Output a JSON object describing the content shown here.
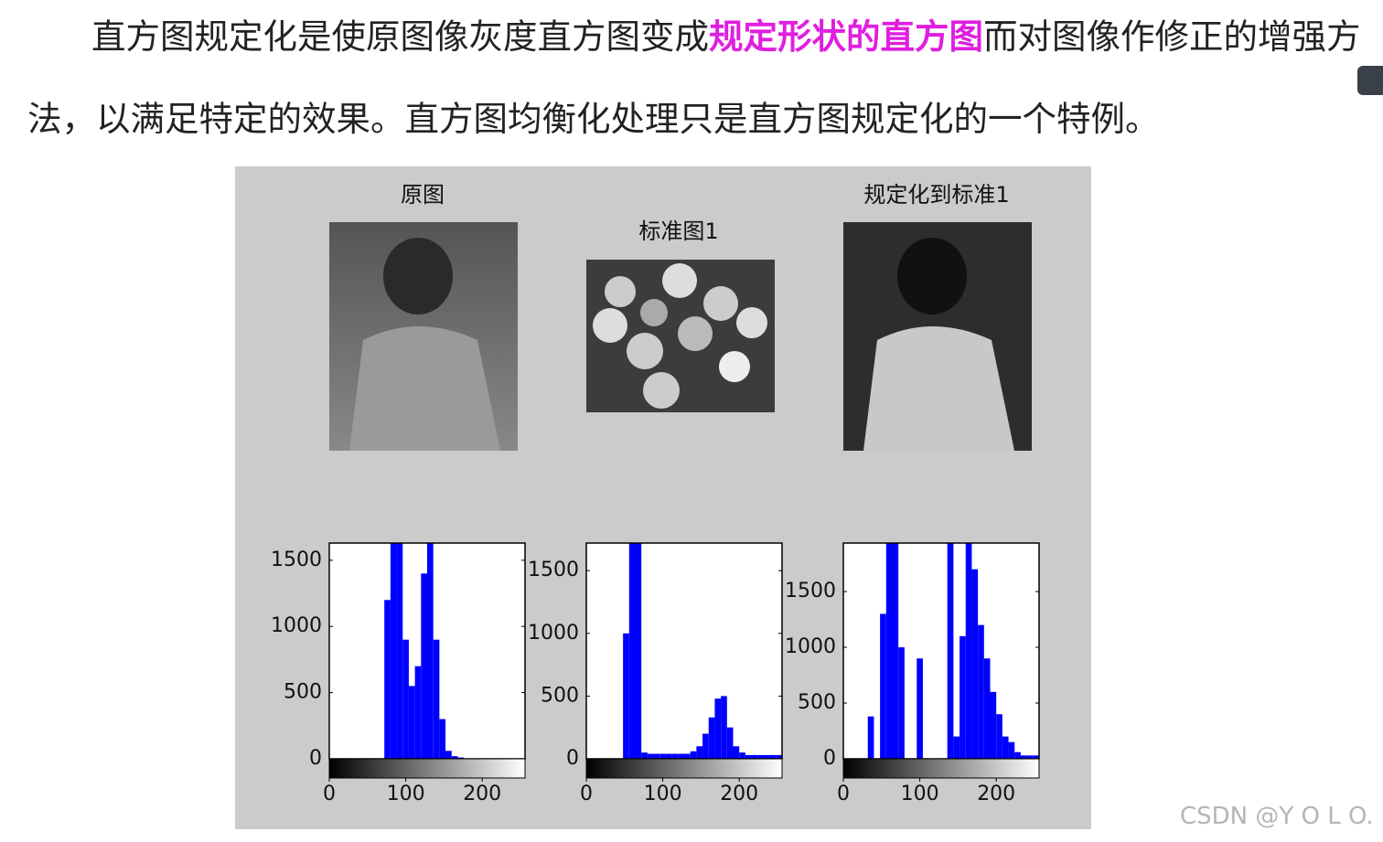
{
  "paragraph": {
    "before": "直方图规定化是使原图像灰度直方图变成",
    "highlight": "规定形状的直方图",
    "after": "而对图像作修正的增强方法，以满足特定的效果。直方图均衡化处理只是直方图规定化的一个特例。"
  },
  "figure": {
    "titles": [
      "原图",
      "标准图1",
      "规定化到标准1"
    ],
    "histograms": [
      {
        "xlim": [
          0,
          256
        ],
        "ylim": [
          0,
          1630
        ],
        "xticks": [
          0,
          100,
          200
        ],
        "yticks": [
          0,
          500,
          1000,
          1500
        ],
        "color": "#0000ff",
        "bins": [
          0,
          8,
          16,
          24,
          32,
          40,
          48,
          56,
          64,
          72,
          80,
          88,
          96,
          104,
          112,
          120,
          128,
          136,
          144,
          152,
          160,
          168,
          176,
          184,
          192,
          200,
          208,
          216,
          224,
          232,
          240,
          248,
          256
        ],
        "counts": [
          0,
          0,
          0,
          0,
          0,
          0,
          0,
          0,
          0,
          1200,
          1700,
          1700,
          900,
          550,
          700,
          1400,
          1700,
          900,
          300,
          60,
          20,
          10,
          0,
          0,
          0,
          0,
          0,
          0,
          0,
          0,
          0,
          0
        ]
      },
      {
        "xlim": [
          0,
          256
        ],
        "ylim": [
          0,
          1720
        ],
        "xticks": [
          0,
          100,
          200
        ],
        "yticks": [
          0,
          500,
          1000,
          1500
        ],
        "color": "#0000ff",
        "bins": [
          0,
          8,
          16,
          24,
          32,
          40,
          48,
          56,
          64,
          72,
          80,
          88,
          96,
          104,
          112,
          120,
          128,
          136,
          144,
          152,
          160,
          168,
          176,
          184,
          192,
          200,
          208,
          216,
          224,
          232,
          240,
          248,
          256
        ],
        "counts": [
          0,
          0,
          0,
          0,
          0,
          0,
          1000,
          1800,
          1800,
          50,
          40,
          40,
          40,
          40,
          40,
          40,
          40,
          60,
          100,
          200,
          330,
          480,
          500,
          250,
          100,
          50,
          30,
          30,
          30,
          30,
          30,
          30
        ]
      },
      {
        "xlim": [
          0,
          256
        ],
        "ylim": [
          0,
          1935
        ],
        "xticks": [
          0,
          100,
          200
        ],
        "yticks": [
          0,
          500,
          1000,
          1500
        ],
        "color": "#0000ff",
        "bins": [
          0,
          8,
          16,
          24,
          32,
          40,
          48,
          56,
          64,
          72,
          80,
          88,
          96,
          104,
          112,
          120,
          128,
          136,
          144,
          152,
          160,
          168,
          176,
          184,
          192,
          200,
          208,
          216,
          224,
          232,
          240,
          248,
          256
        ],
        "counts": [
          0,
          0,
          0,
          0,
          380,
          0,
          1300,
          2000,
          2000,
          1000,
          0,
          0,
          900,
          0,
          0,
          0,
          0,
          2000,
          200,
          1100,
          2000,
          1700,
          1200,
          900,
          600,
          400,
          200,
          150,
          60,
          30,
          30,
          30
        ]
      }
    ]
  },
  "watermark": "CSDN @Y O L O."
}
